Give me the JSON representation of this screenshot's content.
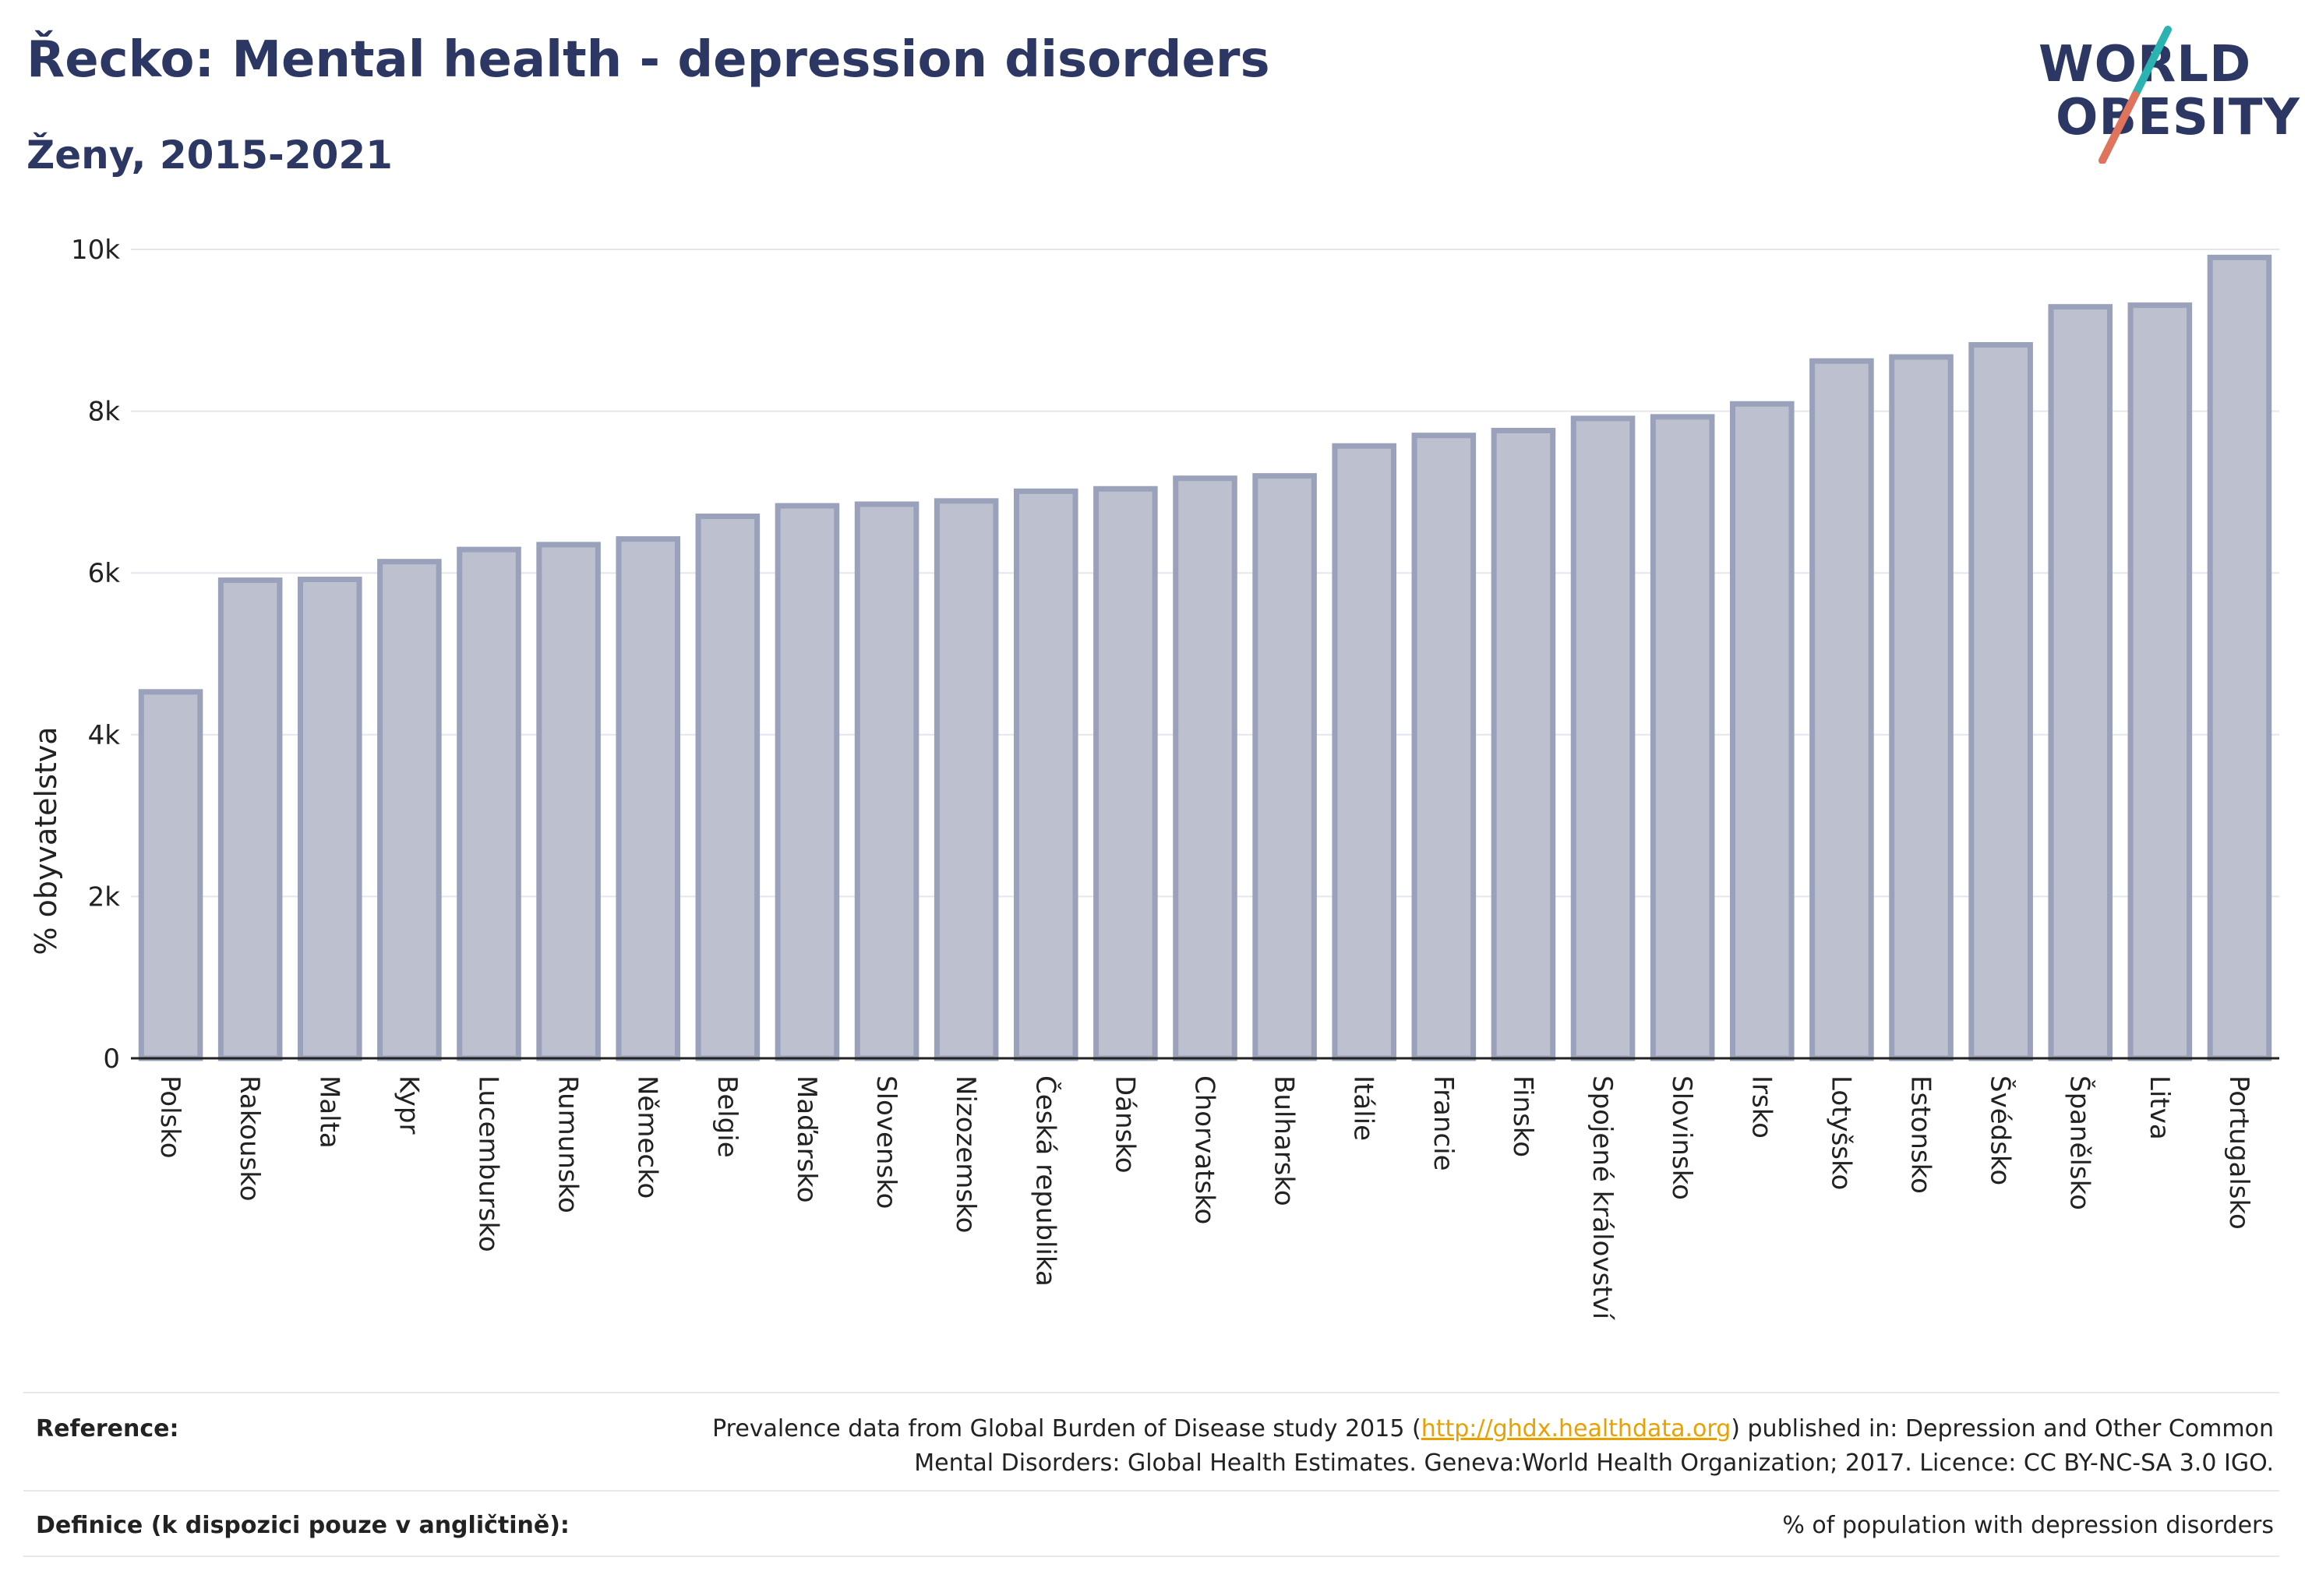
{
  "header": {
    "title": "Řecko: Mental health - depression disorders",
    "subtitle": "Ženy, 2015-2021"
  },
  "logo": {
    "line1": "WORLD",
    "line2": "OBESITY"
  },
  "chart_data": {
    "type": "bar",
    "ylabel": "% obyvatelstva",
    "ylim": [
      0,
      10000
    ],
    "yticks": [
      "0",
      "2k",
      "4k",
      "6k",
      "8k",
      "10k"
    ],
    "grid": true,
    "categories": [
      "Polsko",
      "Rakousko",
      "Malta",
      "Kypr",
      "Lucembursko",
      "Rumunsko",
      "Německo",
      "Belgie",
      "Maďarsko",
      "Slovensko",
      "Nizozemsko",
      "Česká republika",
      "Dánsko",
      "Chorvatsko",
      "Bulharsko",
      "Itálie",
      "Francie",
      "Finsko",
      "Spojené království",
      "Slovinsko",
      "Irsko",
      "Lotyšsko",
      "Estonsko",
      "Švédsko",
      "Španělsko",
      "Litva",
      "Portugalsko"
    ],
    "values": [
      4530,
      5910,
      5920,
      6140,
      6290,
      6350,
      6420,
      6700,
      6830,
      6850,
      6890,
      7010,
      7040,
      7170,
      7200,
      7570,
      7700,
      7760,
      7910,
      7930,
      8090,
      8620,
      8670,
      8820,
      9290,
      9310,
      9900
    ],
    "colors": {
      "bar_fill": "#bcc0cf",
      "bar_stroke": "#9aa1ba",
      "axis": "#2c3763",
      "grid": "#e4e6ee"
    }
  },
  "footer": {
    "reference_label": "Reference:",
    "reference_text_1": "Prevalence data from Global Burden of Disease study 2015 (",
    "reference_link": "http://ghdx.healthdata.org",
    "reference_text_2": ") published in: Depression and Other Common",
    "reference_text_3": "Mental Disorders: Global Health Estimates. Geneva:World Health Organization; 2017. Licence: CC BY-NC-SA 3.0 IGO.",
    "definition_label": "Definice (k dispozici pouze v angličtině):",
    "definition_text": "% of population with depression disorders"
  }
}
